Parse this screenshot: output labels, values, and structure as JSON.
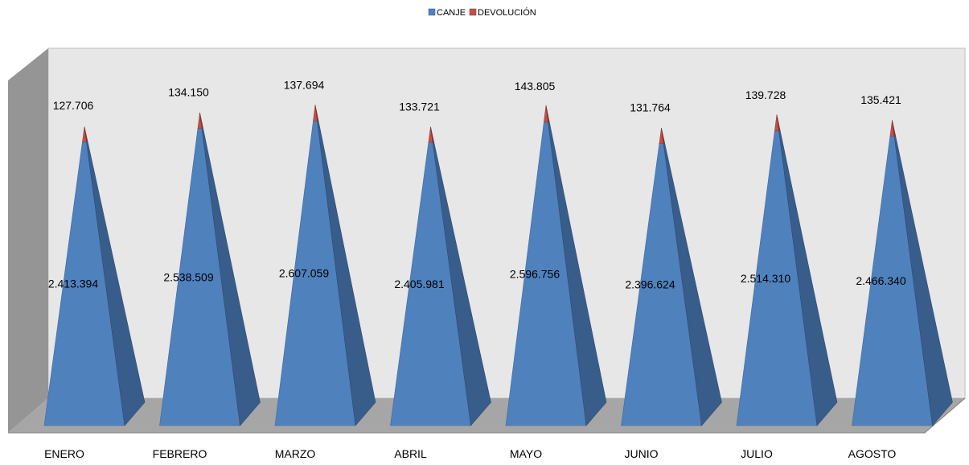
{
  "chart_data": {
    "type": "bar",
    "style": "3d-stacked-pyramid",
    "categories": [
      "ENERO",
      "FEBRERO",
      "MARZO",
      "ABRIL",
      "MAYO",
      "JUNIO",
      "JULIO",
      "AGOSTO"
    ],
    "series": [
      {
        "name": "CANJE",
        "color": "#4f81bd",
        "values": [
          2413394,
          2538509,
          2607059,
          2405981,
          2596756,
          2396624,
          2514310,
          2466340
        ],
        "labels": [
          "2.413.394",
          "2.538.509",
          "2.607.059",
          "2.405.981",
          "2.596.756",
          "2.396.624",
          "2.514.310",
          "2.466.340"
        ]
      },
      {
        "name": "DEVOLUCIÓN",
        "color": "#c0504d",
        "values": [
          127706,
          134150,
          137694,
          133721,
          143805,
          131764,
          139728,
          135421
        ],
        "labels": [
          "127.706",
          "134.150",
          "137.694",
          "133.721",
          "143.805",
          "131.764",
          "139.728",
          "135.421"
        ]
      }
    ],
    "legend": "top-center",
    "grid": false
  }
}
